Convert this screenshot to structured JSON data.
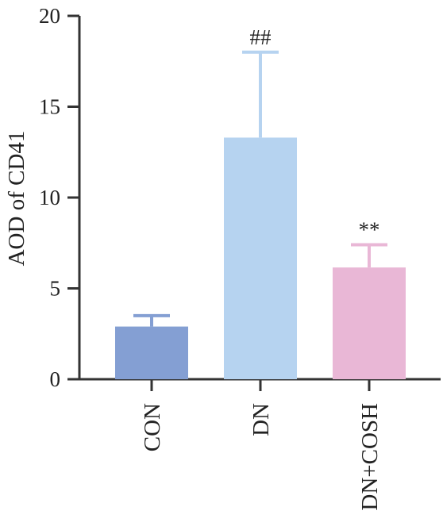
{
  "chart_data": {
    "type": "bar",
    "categories": [
      "CON",
      "DN",
      "DN+COSH"
    ],
    "values": [
      2.9,
      13.3,
      6.15
    ],
    "errors": [
      0.6,
      4.7,
      1.25
    ],
    "annotations": [
      "",
      "##",
      "**"
    ],
    "colors": [
      "#849fd3",
      "#b6d3f0",
      "#e9b7d6"
    ],
    "xlabel": "",
    "ylabel": "AOD of CD41",
    "ylim": [
      0,
      20
    ],
    "yticks": [
      0,
      5,
      10,
      15,
      20
    ],
    "grid": false,
    "legend": "none"
  }
}
